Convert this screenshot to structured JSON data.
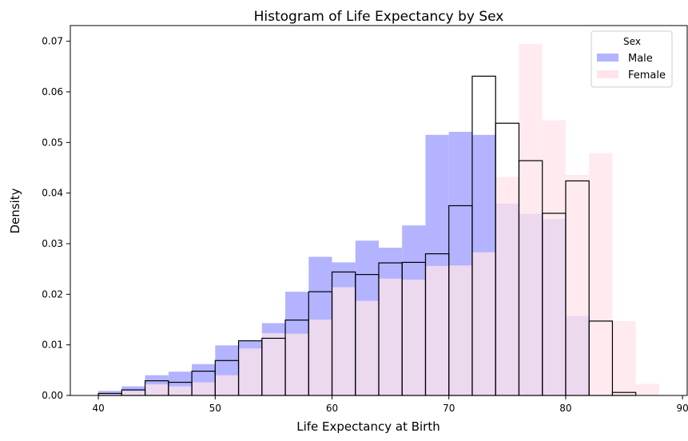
{
  "chart_data": {
    "type": "bar",
    "title": "Histogram of Life Expectancy by Sex",
    "xlabel": "Life Expectancy at Birth",
    "ylabel": "Density",
    "xlim": [
      37.6,
      90.4
    ],
    "ylim": [
      0,
      0.0731
    ],
    "xticks": [
      40,
      50,
      60,
      70,
      80,
      90
    ],
    "yticks": [
      0.0,
      0.01,
      0.02,
      0.03,
      0.04,
      0.05,
      0.06,
      0.07
    ],
    "ytick_labels": [
      "0.00",
      "0.01",
      "0.02",
      "0.03",
      "0.04",
      "0.05",
      "0.06",
      "0.07"
    ],
    "grid": false,
    "legend": {
      "title": "Sex",
      "position": "top-right",
      "entries": [
        "Male",
        "Female"
      ]
    },
    "series": [
      {
        "name": "Male",
        "style": "filled",
        "color": "#b3b3ff",
        "bins": [
          40,
          42,
          44,
          46,
          48,
          50,
          52,
          54,
          56,
          58,
          60,
          62,
          64,
          66,
          68,
          70,
          72,
          74,
          76,
          78,
          80,
          82
        ],
        "values": [
          0.0009,
          0.0018,
          0.004,
          0.0047,
          0.0062,
          0.0099,
          0.0107,
          0.0143,
          0.0205,
          0.0274,
          0.0263,
          0.0306,
          0.0292,
          0.0336,
          0.0515,
          0.0521,
          0.0515,
          0.0379,
          0.0359,
          0.0349,
          0.0157
        ]
      },
      {
        "name": "Female",
        "style": "filled",
        "color": "#ffe4e9",
        "bins": [
          40,
          42,
          44,
          46,
          48,
          50,
          52,
          54,
          56,
          58,
          60,
          62,
          64,
          66,
          68,
          70,
          72,
          74,
          76,
          78,
          80,
          82,
          84,
          86,
          88
        ],
        "values": [
          0.0003,
          0.0009,
          0.0022,
          0.0018,
          0.0026,
          0.004,
          0.0093,
          0.0123,
          0.0122,
          0.015,
          0.0214,
          0.0187,
          0.0231,
          0.0229,
          0.0256,
          0.0257,
          0.0283,
          0.0432,
          0.0695,
          0.0544,
          0.0436,
          0.0479,
          0.0147,
          0.0023
        ]
      },
      {
        "style": "step-outline",
        "color": "#000000",
        "bins": [
          40,
          42,
          44,
          46,
          48,
          50,
          52,
          54,
          56,
          58,
          60,
          62,
          64,
          66,
          68,
          70,
          72,
          74,
          76,
          78,
          80,
          82,
          84,
          86
        ],
        "values": [
          0.0004,
          0.0011,
          0.0029,
          0.0026,
          0.0048,
          0.0069,
          0.0108,
          0.0113,
          0.0149,
          0.0205,
          0.0244,
          0.0239,
          0.0262,
          0.0263,
          0.028,
          0.0375,
          0.0631,
          0.0538,
          0.0464,
          0.036,
          0.0424,
          0.0147,
          0.0006
        ]
      }
    ]
  }
}
